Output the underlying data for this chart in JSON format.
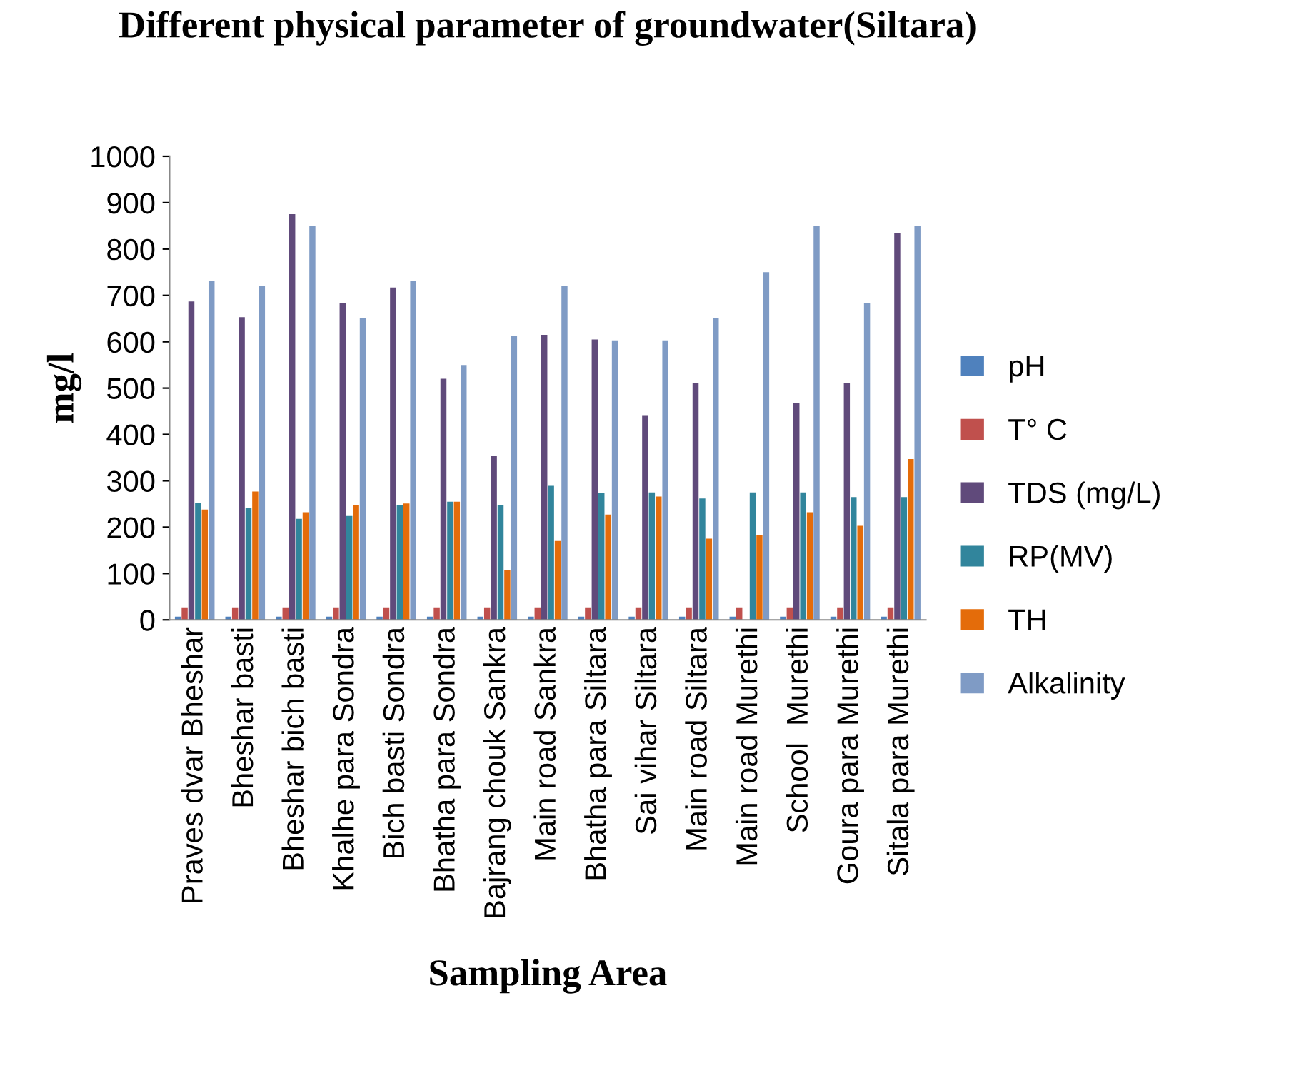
{
  "chart_data": {
    "type": "bar",
    "title": "Different physical parameter of groundwater(Siltara)",
    "xlabel": "Sampling Area",
    "ylabel": "mg/l",
    "categories": [
      "Praves dvar Bheshar",
      "Bheshar basti",
      "Bheshar bich basti",
      "Khalhe para Sondra",
      "Bich basti Sondra",
      "Bhatha para Sondra",
      "Bajrang chouk Sankra",
      "Main road Sankra",
      "Bhatha para Siltara",
      "Sai vihar Siltara",
      "Main road Siltara",
      "Main road Murethi",
      "School  Murethi",
      "Goura para Murethi",
      "Sitala para Murethi"
    ],
    "series": [
      {
        "name": "pH",
        "color": "#4f81bd",
        "values": [
          7,
          7,
          7,
          7,
          7,
          7,
          7,
          7,
          7,
          7,
          7,
          7,
          7,
          7,
          7
        ]
      },
      {
        "name": "T° C",
        "color": "#c0504d",
        "values": [
          27,
          27,
          27,
          27,
          27,
          27,
          27,
          27,
          27,
          27,
          27,
          27,
          27,
          27,
          27
        ]
      },
      {
        "name": "TDS (mg/L)",
        "color": "#604a7b",
        "values": [
          687,
          653,
          875,
          683,
          717,
          520,
          353,
          615,
          605,
          440,
          510,
          null,
          467,
          510,
          835
        ]
      },
      {
        "name": "RP(MV)",
        "color": "#31859c",
        "values": [
          252,
          242,
          218,
          224,
          248,
          255,
          248,
          289,
          273,
          275,
          262,
          275,
          275,
          265,
          265
        ]
      },
      {
        "name": "TH",
        "color": "#e46c0a",
        "values": [
          238,
          277,
          232,
          248,
          251,
          255,
          108,
          170,
          227,
          266,
          175,
          182,
          232,
          203,
          347
        ]
      },
      {
        "name": "Alkalinity",
        "color": "#7f9bc5",
        "values": [
          732,
          720,
          850,
          652,
          732,
          550,
          612,
          720,
          603,
          603,
          652,
          750,
          850,
          683,
          850
        ]
      }
    ],
    "ylim": [
      0,
      1000
    ],
    "yticks": [
      0,
      100,
      200,
      300,
      400,
      500,
      600,
      700,
      800,
      900,
      1000
    ],
    "grid": false,
    "legend": "right"
  }
}
